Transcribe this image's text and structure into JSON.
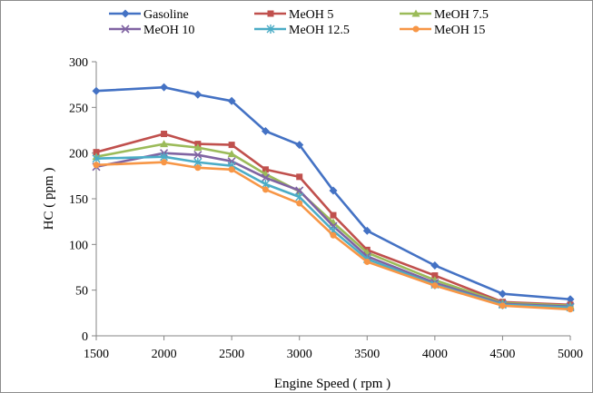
{
  "chart_data": {
    "type": "line",
    "title": "",
    "xlabel": "Engine Speed ( rpm )",
    "ylabel": "HC ( ppm )",
    "x": [
      1500,
      2000,
      2250,
      2500,
      2750,
      3000,
      3250,
      3500,
      4000,
      4500,
      5000
    ],
    "xticks": [
      1500,
      2000,
      2500,
      3000,
      3500,
      4000,
      4500,
      5000
    ],
    "yticks": [
      0,
      50,
      100,
      150,
      200,
      250,
      300
    ],
    "xlim": [
      1500,
      5000
    ],
    "ylim": [
      0,
      300
    ],
    "grid": false,
    "legend_position": "top",
    "series": [
      {
        "name": "Gasoline",
        "color": "#4472C4",
        "marker": "diamond",
        "values": [
          268,
          272,
          264,
          257,
          224,
          209,
          159,
          115,
          77,
          46,
          40
        ]
      },
      {
        "name": "MeOH 5",
        "color": "#C0504D",
        "marker": "square",
        "values": [
          201,
          221,
          210,
          209,
          182,
          174,
          132,
          94,
          66,
          37,
          34
        ]
      },
      {
        "name": "MeOH 7.5",
        "color": "#9BBB59",
        "marker": "triangle",
        "values": [
          196,
          210,
          206,
          199,
          177,
          158,
          124,
          91,
          61,
          36,
          33
        ]
      },
      {
        "name": "MeOH 10",
        "color": "#8064A2",
        "marker": "x",
        "values": [
          185,
          200,
          198,
          191,
          173,
          159,
          120,
          87,
          58,
          35,
          32
        ]
      },
      {
        "name": "MeOH 12.5",
        "color": "#4BACC6",
        "marker": "star",
        "values": [
          194,
          196,
          190,
          186,
          166,
          152,
          115,
          84,
          56,
          34,
          31
        ]
      },
      {
        "name": "MeOH 15",
        "color": "#F79646",
        "marker": "circle",
        "values": [
          187,
          190,
          184,
          182,
          160,
          145,
          110,
          81,
          55,
          33,
          29
        ]
      }
    ]
  }
}
